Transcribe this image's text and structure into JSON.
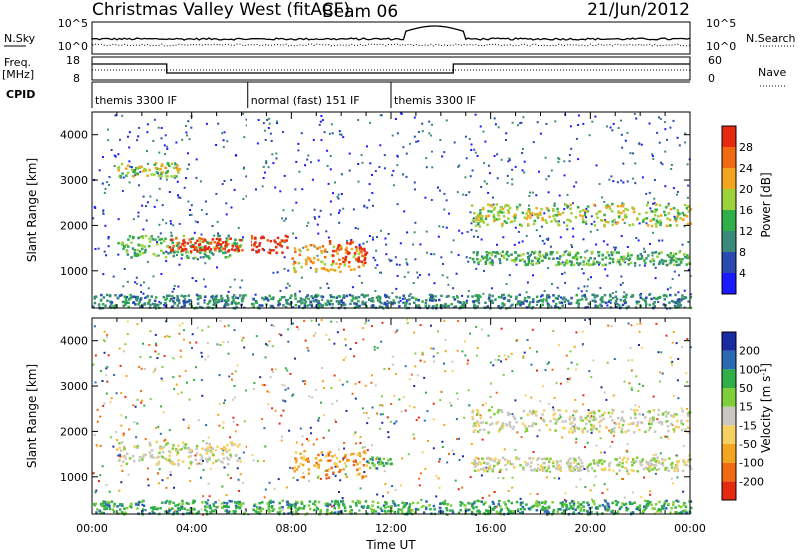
{
  "header": {
    "station": "Christmas Valley West (fitACF)",
    "beam": "Beam 06",
    "date": "21/Jun/2012"
  },
  "summary": {
    "nsky_label": "N.Sky",
    "nsearch_label": "N.Search",
    "freq_label_1": "Freq.",
    "freq_label_2": "[MHz]",
    "nave_label": "Nave",
    "cpid_label": "CPID",
    "nsky_ticks": [
      "10^5",
      "10^0"
    ],
    "nsearch_ticks": [
      "10^5",
      "10^0"
    ],
    "freq_ticks": [
      "18",
      "8"
    ],
    "nave_ticks": [
      "60",
      "0"
    ],
    "cpid_segments": [
      {
        "label": "themis 3300 IF",
        "start_h": 0,
        "end_h": 6.25
      },
      {
        "label": "normal (fast) 151 IF",
        "start_h": 6.25,
        "end_h": 12.0
      },
      {
        "label": "themis 3300 IF",
        "start_h": 12.0,
        "end_h": 24
      }
    ]
  },
  "chart_data": [
    {
      "type": "heatmap",
      "parameter": "Power",
      "ylabel": "Slant Range [km]",
      "colorbar_label": "Power [dB]",
      "colorbar_ticks": [
        "4",
        "8",
        "12",
        "16",
        "20",
        "24",
        "28"
      ],
      "colorbar_range": [
        0,
        32
      ],
      "colorbar_colors": [
        "#1a1aff",
        "#2a4ab0",
        "#3a8a7a",
        "#2fae4a",
        "#9dd23a",
        "#f2a51e",
        "#f06a12",
        "#e62a12"
      ],
      "ylim": [
        180,
        4500
      ],
      "yticks": [
        1000,
        2000,
        3000,
        4000
      ],
      "xlim": [
        0,
        24
      ],
      "bands": [
        {
          "t": [
            1.0,
            6.0
          ],
          "r": [
            1300,
            1800
          ],
          "level": 3
        },
        {
          "t": [
            3.0,
            6.0
          ],
          "r": [
            1450,
            1750
          ],
          "level": 7
        },
        {
          "t": [
            1.0,
            3.5
          ],
          "r": [
            3100,
            3400
          ],
          "level": 4
        },
        {
          "t": [
            6.3,
            7.8
          ],
          "r": [
            1400,
            1800
          ],
          "level": 7
        },
        {
          "t": [
            8.0,
            11.0
          ],
          "r": [
            1000,
            1600
          ],
          "level": 5
        },
        {
          "t": [
            9.5,
            11.0
          ],
          "r": [
            1200,
            1700
          ],
          "level": 7
        },
        {
          "t": [
            15.2,
            24
          ],
          "r": [
            2000,
            2500
          ],
          "level": 4
        },
        {
          "t": [
            15.2,
            24
          ],
          "r": [
            1150,
            1450
          ],
          "level": 3
        },
        {
          "t": [
            0,
            24
          ],
          "r": [
            200,
            500
          ],
          "level": 2
        }
      ]
    },
    {
      "type": "heatmap",
      "parameter": "Velocity",
      "ylabel": "Slant Range [km]",
      "colorbar_label": "Velocity [m s^-1]",
      "colorbar_ticks": [
        "-200",
        "-100",
        "-50",
        "-15",
        "15",
        "50",
        "100",
        "200"
      ],
      "colorbar_range": [
        -250,
        250
      ],
      "colorbar_colors": [
        "#e62a12",
        "#f06a12",
        "#f2a51e",
        "#f6d060",
        "#c8c8c0",
        "#7fcf3a",
        "#2fae4a",
        "#2a6ab0",
        "#1a2aa0"
      ],
      "ylim": [
        180,
        4500
      ],
      "yticks": [
        1000,
        2000,
        3000,
        4000
      ],
      "xlim": [
        0,
        24
      ],
      "bands": [
        {
          "t": [
            1.0,
            6.0
          ],
          "r": [
            1300,
            1800
          ],
          "level": 4
        },
        {
          "t": [
            8.0,
            11.0
          ],
          "r": [
            1000,
            1600
          ],
          "level": 2
        },
        {
          "t": [
            11.0,
            12.0
          ],
          "r": [
            1200,
            1450
          ],
          "level": 6
        },
        {
          "t": [
            15.2,
            24
          ],
          "r": [
            2000,
            2500
          ],
          "level": 4
        },
        {
          "t": [
            15.2,
            24
          ],
          "r": [
            1150,
            1450
          ],
          "level": 4
        },
        {
          "t": [
            0,
            24
          ],
          "r": [
            200,
            500
          ],
          "level": 6
        }
      ]
    }
  ],
  "xaxis": {
    "label": "Time UT",
    "ticks": [
      "00:00",
      "04:00",
      "08:00",
      "12:00",
      "16:00",
      "20:00",
      "00:00"
    ]
  }
}
